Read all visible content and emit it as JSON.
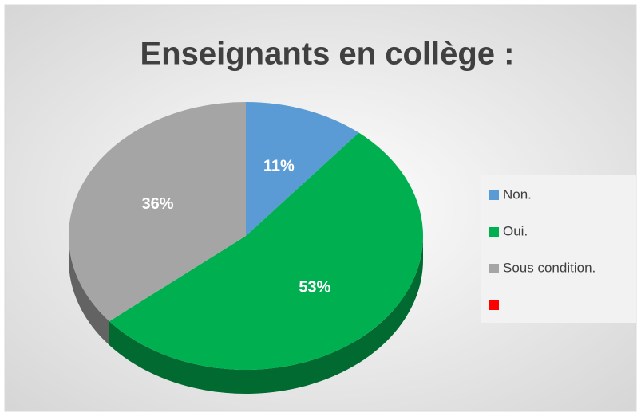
{
  "chart_data": {
    "type": "pie",
    "title": "Enseignants en collège :",
    "categories": [
      "Non.",
      "Oui.",
      "Sous condition.",
      null
    ],
    "values": [
      11,
      53,
      36,
      0
    ],
    "value_labels": [
      "11%",
      "53%",
      "36%",
      null
    ],
    "colors": [
      "#5b9bd5",
      "#00b050",
      "#a5a5a5",
      "#ff0000"
    ],
    "legend": "right"
  }
}
